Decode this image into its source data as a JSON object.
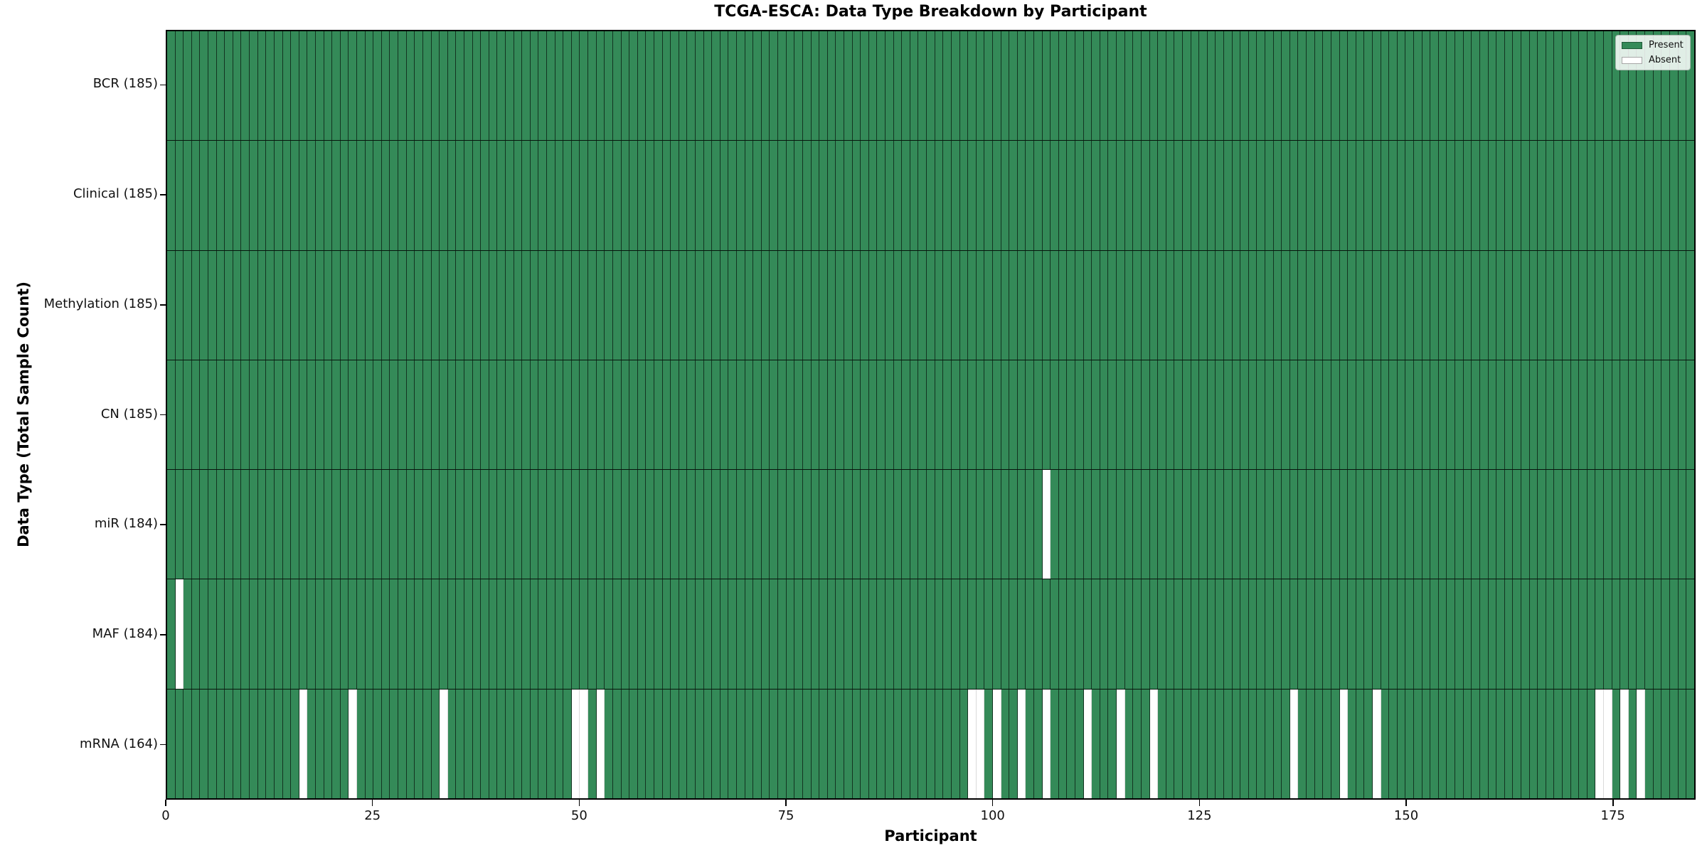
{
  "figure": {
    "title": "TCGA-ESCA: Data Type Breakdown by Participant",
    "xlabel": "Participant",
    "ylabel": "Data Type (Total Sample Count)"
  },
  "legend": {
    "items": [
      {
        "label": "Present",
        "color": "#348a58"
      },
      {
        "label": "Absent",
        "color": "#ffffff"
      }
    ]
  },
  "chart_data": {
    "type": "heatmap",
    "title": "TCGA-ESCA: Data Type Breakdown by Participant",
    "xlabel": "Participant",
    "ylabel": "Data Type (Total Sample Count)",
    "legend_position": "upper right",
    "grid": true,
    "n_participants": 185,
    "x_ticks": [
      0,
      25,
      50,
      75,
      100,
      125,
      150,
      175
    ],
    "xlim": [
      0,
      185
    ],
    "present_color": "#348a58",
    "absent_color": "#ffffff",
    "rows": [
      {
        "label": "BCR (185)",
        "data_type": "BCR",
        "present_count": 185,
        "absent_participants": []
      },
      {
        "label": "Clinical (185)",
        "data_type": "Clinical",
        "present_count": 185,
        "absent_participants": []
      },
      {
        "label": "Methylation (185)",
        "data_type": "Methylation",
        "present_count": 185,
        "absent_participants": []
      },
      {
        "label": "CN (185)",
        "data_type": "CN",
        "present_count": 185,
        "absent_participants": []
      },
      {
        "label": "miR (184)",
        "data_type": "miR",
        "present_count": 184,
        "absent_participants": [
          106
        ]
      },
      {
        "label": "MAF (184)",
        "data_type": "MAF",
        "present_count": 184,
        "absent_participants": [
          1
        ]
      },
      {
        "label": "mRNA (164)",
        "data_type": "mRNA",
        "present_count": 164,
        "absent_participants": [
          16,
          22,
          33,
          49,
          50,
          52,
          97,
          98,
          100,
          103,
          106,
          111,
          115,
          119,
          136,
          142,
          146,
          173,
          174,
          176,
          178
        ]
      }
    ]
  }
}
